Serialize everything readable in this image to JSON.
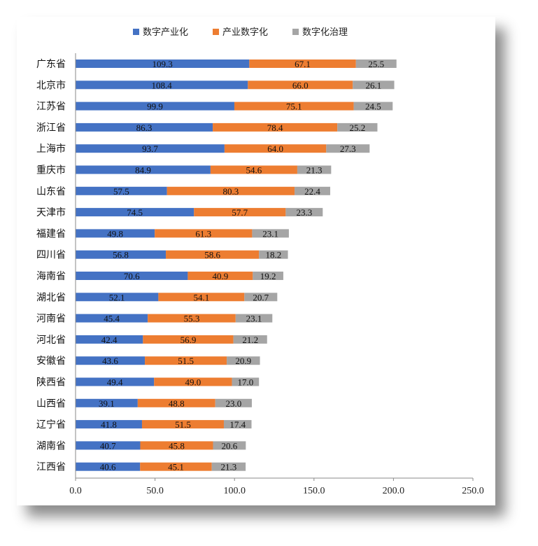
{
  "chart_data": {
    "type": "bar",
    "orientation": "horizontal",
    "stacked": true,
    "categories": [
      "广东省",
      "北京市",
      "江苏省",
      "浙江省",
      "上海市",
      "重庆市",
      "山东省",
      "天津市",
      "福建省",
      "四川省",
      "海南省",
      "湖北省",
      "河南省",
      "河北省",
      "安徽省",
      "陕西省",
      "山西省",
      "辽宁省",
      "湖南省",
      "江西省"
    ],
    "series": [
      {
        "name": "数字产业化",
        "color": "#4472C4",
        "values": [
          109.3,
          108.4,
          99.9,
          86.3,
          93.7,
          84.9,
          57.5,
          74.5,
          49.8,
          56.8,
          70.6,
          52.1,
          45.4,
          42.4,
          43.6,
          49.4,
          39.1,
          41.8,
          40.7,
          40.6
        ]
      },
      {
        "name": "产业数字化",
        "color": "#ED7D31",
        "values": [
          67.1,
          66.0,
          75.1,
          78.4,
          64.0,
          54.6,
          80.3,
          57.7,
          61.3,
          58.6,
          40.9,
          54.1,
          55.3,
          56.9,
          51.5,
          49.0,
          48.8,
          51.5,
          45.8,
          45.1
        ]
      },
      {
        "name": "数字化治理",
        "color": "#A5A5A5",
        "values": [
          25.5,
          26.1,
          24.5,
          25.2,
          27.3,
          21.3,
          22.4,
          23.3,
          23.1,
          18.2,
          19.2,
          20.7,
          23.1,
          21.2,
          20.9,
          17.0,
          23.0,
          17.4,
          20.6,
          21.3
        ]
      }
    ],
    "xlim": [
      0,
      250
    ],
    "xticks": [
      "0.0",
      "50.0",
      "100.0",
      "150.0",
      "200.0",
      "250.0"
    ],
    "legend_position": "top",
    "grid": false
  }
}
